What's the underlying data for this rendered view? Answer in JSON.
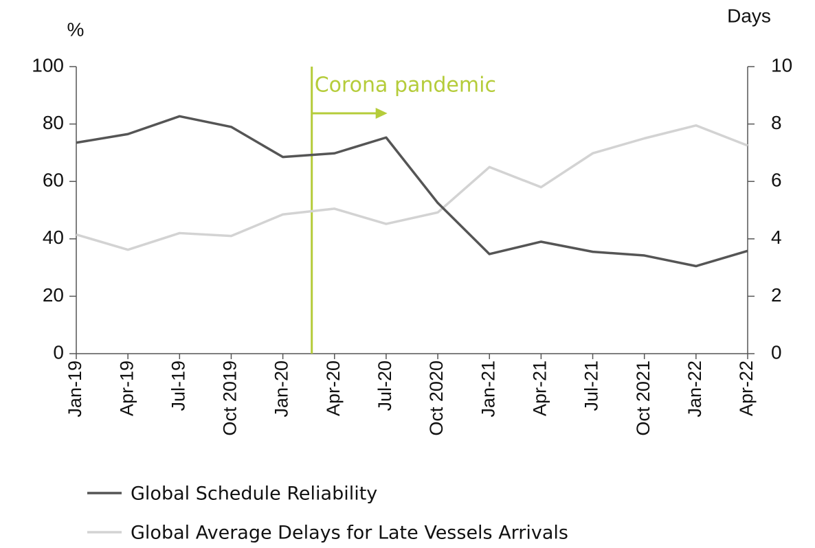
{
  "chart_data": {
    "type": "line",
    "categories": [
      "Jan-19",
      "Apr-19",
      "Jul-19",
      "Oct 2019",
      "Jan-20",
      "Apr-20",
      "Jul-20",
      "Oct 2020",
      "Jan-21",
      "Apr-21",
      "Jul-21",
      "Oct 2021",
      "Jan-22",
      "Apr-22"
    ],
    "series": [
      {
        "name": "Global Schedule Reliability",
        "color": "#555555",
        "values": [
          73.5,
          76.5,
          82.7,
          79,
          68.5,
          69.8,
          75.3,
          52.5,
          34.7,
          39,
          35.5,
          34.2,
          30.5,
          35.8
        ]
      },
      {
        "name": "Global Average Delays for Late Vessels Arrivals",
        "color": "#d3d3d3",
        "axis": "y2",
        "values": [
          4.15,
          3.62,
          4.2,
          4.1,
          4.85,
          5.05,
          4.52,
          4.92,
          6.5,
          5.8,
          6.98,
          7.5,
          7.95,
          7.25
        ]
      }
    ],
    "ylabel": "%",
    "y2label": "Days",
    "ylim": [
      0,
      100
    ],
    "yticks": [
      0,
      20,
      40,
      60,
      80,
      100
    ],
    "y2lim": [
      0,
      10
    ],
    "y2ticks": [
      0,
      2,
      4,
      6,
      8,
      10
    ],
    "annotation": {
      "text": "Corona pandemic",
      "color": "#b5cc3a"
    }
  }
}
